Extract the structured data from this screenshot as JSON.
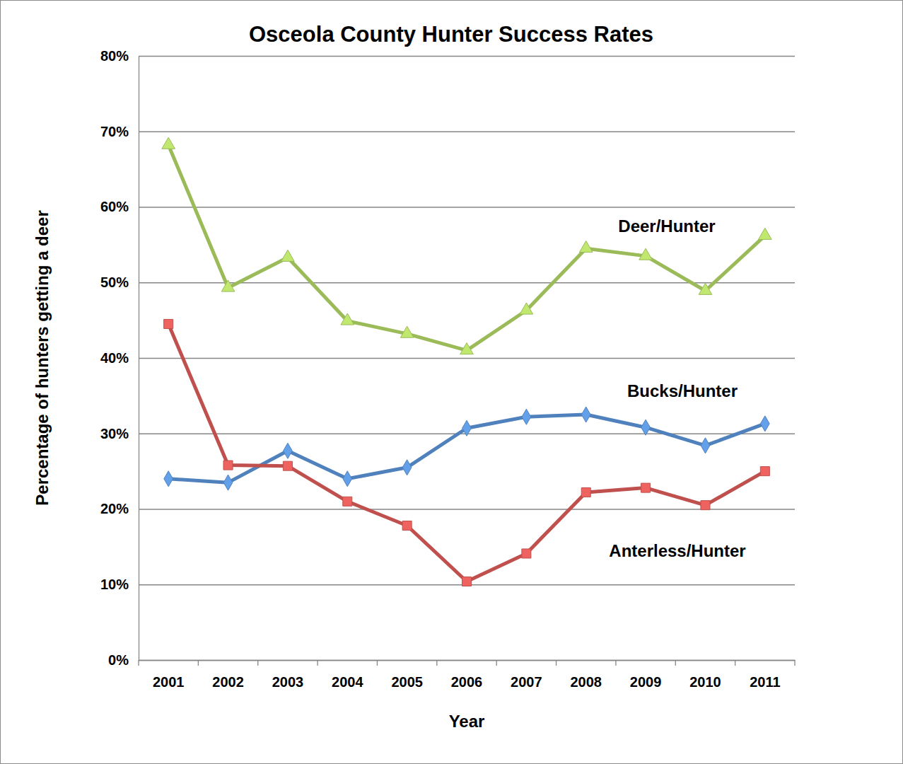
{
  "chart_data": {
    "type": "line",
    "title": "Osceola County Hunter Success Rates",
    "x_label": "Year",
    "y_label": "Percentage of hunters getting a deer",
    "categories": [
      "2001",
      "2002",
      "2003",
      "2004",
      "2005",
      "2006",
      "2007",
      "2008",
      "2009",
      "2010",
      "2011"
    ],
    "series": [
      {
        "name": "Deer/Hunter",
        "color": "#9bbb59",
        "marker": "triangle",
        "values": [
          68.2,
          49.3,
          53.3,
          44.9,
          43.2,
          41.0,
          46.3,
          54.5,
          53.5,
          48.9,
          56.2
        ]
      },
      {
        "name": "Bucks/Hunter",
        "color": "#4f81bd",
        "marker": "diamond",
        "values": [
          24.0,
          23.5,
          27.7,
          24.0,
          25.5,
          30.7,
          32.2,
          32.5,
          30.8,
          28.4,
          31.3
        ]
      },
      {
        "name": "Anterless/Hunter",
        "color": "#c0504d",
        "marker": "square",
        "values": [
          44.5,
          25.8,
          25.7,
          21.0,
          17.8,
          10.4,
          14.1,
          22.2,
          22.8,
          20.5,
          25.0
        ]
      }
    ],
    "ylim": [
      0,
      80
    ],
    "yticks": [
      {
        "value": 0,
        "label": "0%"
      },
      {
        "value": 10,
        "label": "10%"
      },
      {
        "value": 20,
        "label": "20%"
      },
      {
        "value": 30,
        "label": "30%"
      },
      {
        "value": 40,
        "label": "40%"
      },
      {
        "value": 50,
        "label": "50%"
      },
      {
        "value": 60,
        "label": "60%"
      },
      {
        "value": 70,
        "label": "70%"
      },
      {
        "value": 80,
        "label": "80%"
      }
    ],
    "grid": true
  }
}
